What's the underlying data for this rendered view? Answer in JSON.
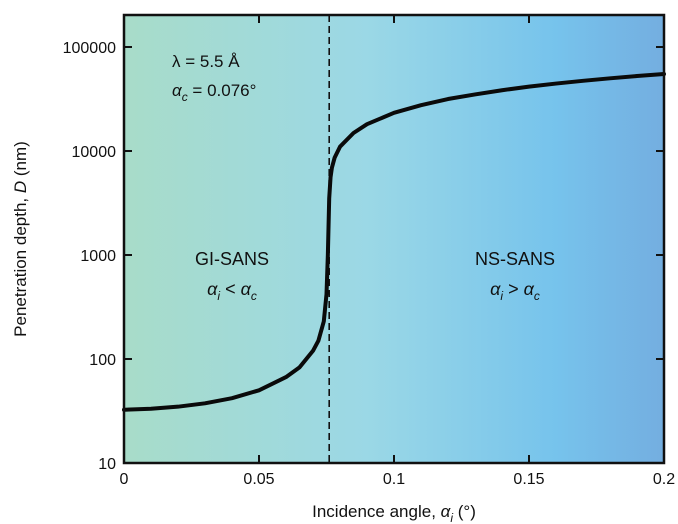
{
  "chart_data": {
    "type": "line",
    "xlabel": {
      "text": "Incidence angle, ",
      "symbol": "α",
      "sub": "i",
      "unit": " (°)"
    },
    "ylabel": {
      "text": "Penetration depth, ",
      "symbol": "D",
      "unit": " (nm)"
    },
    "xlim": [
      0,
      0.2
    ],
    "ylim": [
      10,
      200000
    ],
    "yscale": "log",
    "xticks": [
      {
        "value": 0,
        "label": "0"
      },
      {
        "value": 0.05,
        "label": "0.05"
      },
      {
        "value": 0.1,
        "label": "0.1"
      },
      {
        "value": 0.15,
        "label": "0.15"
      },
      {
        "value": 0.2,
        "label": "0.2"
      }
    ],
    "yticks": [
      {
        "value": 10,
        "label": "10"
      },
      {
        "value": 100,
        "label": "100"
      },
      {
        "value": 1000,
        "label": "1000"
      },
      {
        "value": 10000,
        "label": "10000"
      },
      {
        "value": 100000,
        "label": "100000"
      }
    ],
    "critical_angle_line": 0.076,
    "background_gradient": [
      "#a8dcc9",
      "#9bd8e6",
      "#76c3ec",
      "#74aee0"
    ],
    "line_color": "#0a0a0a",
    "series": [
      {
        "x": [
          0,
          0.01,
          0.02,
          0.03,
          0.04,
          0.05,
          0.06,
          0.065,
          0.07,
          0.072,
          0.074,
          0.075,
          0.0755,
          0.076,
          0.0765,
          0.077,
          0.078,
          0.08,
          0.085,
          0.09,
          0.1,
          0.11,
          0.12,
          0.13,
          0.14,
          0.15,
          0.16,
          0.17,
          0.18,
          0.19,
          0.2
        ],
        "y": [
          32.5,
          33.2,
          34.8,
          37.5,
          42,
          50,
          67,
          83,
          120,
          150,
          230,
          420,
          1000,
          3500,
          5600,
          6900,
          8600,
          11000,
          14900,
          18100,
          23300,
          27600,
          31600,
          35000,
          38400,
          41600,
          44500,
          47300,
          50000,
          52600,
          55000
        ]
      }
    ],
    "annotations": {
      "wavelength": "λ = 5.5 Å",
      "critical_symbol": "α",
      "critical_sub": "c",
      "critical_value": " = 0.076°",
      "left_region": {
        "title": "GI-SANS",
        "sym1": "α",
        "sub1": "i",
        "op": " < ",
        "sym2": "α",
        "sub2": "c"
      },
      "right_region": {
        "title": "NS-SANS",
        "sym1": "α",
        "sub1": "i",
        "op": " > ",
        "sym2": "α",
        "sub2": "c"
      }
    }
  }
}
